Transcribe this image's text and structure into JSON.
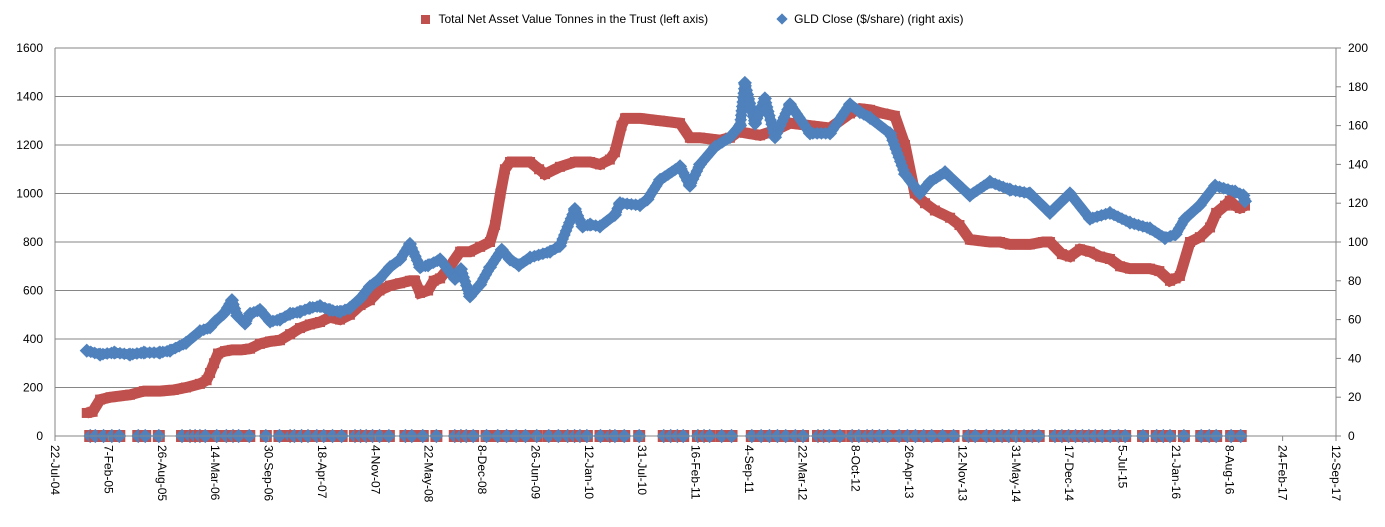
{
  "chart_data": {
    "type": "scatter",
    "title": "",
    "x_axis": {
      "type": "date",
      "min": "2004-07-22",
      "max": "2017-09-12",
      "tick_interval_days": 200,
      "tick_labels": [
        "22-Jul-04",
        "7-Feb-05",
        "26-Aug-05",
        "14-Mar-06",
        "30-Sep-06",
        "18-Apr-07",
        "4-Nov-07",
        "22-May-08",
        "8-Dec-08",
        "26-Jun-09",
        "12-Jan-10",
        "31-Jul-10",
        "16-Feb-11",
        "4-Sep-11",
        "22-Mar-12",
        "8-Oct-12",
        "26-Apr-13",
        "12-Nov-13",
        "31-May-14",
        "17-Dec-14",
        "5-Jul-15",
        "21-Jan-16",
        "8-Aug-16",
        "24-Feb-17",
        "12-Sep-17"
      ]
    },
    "y_left": {
      "min": 0,
      "max": 1600,
      "step": 200,
      "tick_labels": [
        "0",
        "200",
        "400",
        "600",
        "800",
        "1000",
        "1200",
        "1400",
        "1600"
      ]
    },
    "y_right": {
      "min": 0,
      "max": 200,
      "step": 20,
      "tick_labels": [
        "0",
        "20",
        "40",
        "60",
        "80",
        "100",
        "120",
        "140",
        "160",
        "180",
        "200"
      ]
    },
    "grid": true,
    "legend_position": "top",
    "series": [
      {
        "name": "Total Net Asset Value Tonnes in the Trust (left axis)",
        "axis": "left",
        "marker": "square",
        "color": "#C0504D",
        "points": [
          [
            "2004-11-18",
            95
          ],
          [
            "2004-12-10",
            100
          ],
          [
            "2005-01-07",
            150
          ],
          [
            "2005-02-15",
            160
          ],
          [
            "2005-04-29",
            170
          ],
          [
            "2005-06-20",
            185
          ],
          [
            "2005-08-19",
            185
          ],
          [
            "2005-10-10",
            190
          ],
          [
            "2005-11-25",
            200
          ],
          [
            "2006-01-16",
            215
          ],
          [
            "2006-02-10",
            230
          ],
          [
            "2006-02-23",
            260
          ],
          [
            "2006-03-10",
            300
          ],
          [
            "2006-03-25",
            340
          ],
          [
            "2006-04-20",
            350
          ],
          [
            "2006-05-16",
            355
          ],
          [
            "2006-06-20",
            355
          ],
          [
            "2006-07-23",
            360
          ],
          [
            "2006-08-29",
            380
          ],
          [
            "2006-10-06",
            390
          ],
          [
            "2006-11-12",
            395
          ],
          [
            "2006-12-20",
            420
          ],
          [
            "2007-01-26",
            445
          ],
          [
            "2007-03-04",
            460
          ],
          [
            "2007-04-11",
            470
          ],
          [
            "2007-05-18",
            490
          ],
          [
            "2007-06-25",
            480
          ],
          [
            "2007-08-01",
            500
          ],
          [
            "2007-09-10",
            540
          ],
          [
            "2007-10-15",
            560
          ],
          [
            "2007-11-20",
            600
          ],
          [
            "2007-12-29",
            620
          ],
          [
            "2008-02-05",
            630
          ],
          [
            "2008-03-13",
            640
          ],
          [
            "2008-04-01",
            640
          ],
          [
            "2008-04-20",
            590
          ],
          [
            "2008-05-20",
            600
          ],
          [
            "2008-06-10",
            640
          ],
          [
            "2008-07-04",
            650
          ],
          [
            "2008-08-10",
            700
          ],
          [
            "2008-09-17",
            760
          ],
          [
            "2008-10-24",
            760
          ],
          [
            "2008-12-01",
            780
          ],
          [
            "2009-01-07",
            800
          ],
          [
            "2009-01-26",
            870
          ],
          [
            "2009-02-15",
            1000
          ],
          [
            "2009-03-04",
            1100
          ],
          [
            "2009-03-23",
            1130
          ],
          [
            "2009-05-01",
            1130
          ],
          [
            "2009-06-06",
            1130
          ],
          [
            "2009-07-10",
            1100
          ],
          [
            "2009-08-01",
            1080
          ],
          [
            "2009-09-26",
            1110
          ],
          [
            "2009-11-21",
            1130
          ],
          [
            "2010-01-17",
            1130
          ],
          [
            "2010-02-23",
            1120
          ],
          [
            "2010-04-01",
            1140
          ],
          [
            "2010-04-20",
            1170
          ],
          [
            "2010-05-15",
            1280
          ],
          [
            "2010-05-28",
            1310
          ],
          [
            "2010-07-23",
            1310
          ],
          [
            "2010-10-06",
            1300
          ],
          [
            "2010-12-20",
            1290
          ],
          [
            "2011-01-26",
            1230
          ],
          [
            "2011-03-05",
            1230
          ],
          [
            "2011-05-19",
            1220
          ],
          [
            "2011-06-25",
            1230
          ],
          [
            "2011-08-02",
            1260
          ],
          [
            "2011-08-20",
            1250
          ],
          [
            "2011-10-16",
            1240
          ],
          [
            "2011-12-11",
            1260
          ],
          [
            "2012-02-05",
            1290
          ],
          [
            "2012-04-20",
            1280
          ],
          [
            "2012-07-04",
            1270
          ],
          [
            "2012-09-17",
            1330
          ],
          [
            "2012-10-24",
            1350
          ],
          [
            "2012-12-01",
            1345
          ],
          [
            "2013-01-20",
            1330
          ],
          [
            "2013-03-04",
            1320
          ],
          [
            "2013-04-11",
            1200
          ],
          [
            "2013-05-18",
            1000
          ],
          [
            "2013-06-25",
            960
          ],
          [
            "2013-08-01",
            930
          ],
          [
            "2013-09-27",
            900
          ],
          [
            "2013-11-01",
            870
          ],
          [
            "2013-12-10",
            810
          ],
          [
            "2014-02-23",
            800
          ],
          [
            "2014-04-02",
            800
          ],
          [
            "2014-05-09",
            790
          ],
          [
            "2014-07-23",
            790
          ],
          [
            "2014-09-10",
            800
          ],
          [
            "2014-10-06",
            800
          ],
          [
            "2014-11-20",
            750
          ],
          [
            "2014-12-20",
            740
          ],
          [
            "2015-01-27",
            770
          ],
          [
            "2015-03-05",
            760
          ],
          [
            "2015-04-12",
            740
          ],
          [
            "2015-05-19",
            730
          ],
          [
            "2015-06-26",
            700
          ],
          [
            "2015-08-02",
            690
          ],
          [
            "2015-10-16",
            690
          ],
          [
            "2015-11-20",
            680
          ],
          [
            "2015-12-30",
            640
          ],
          [
            "2016-01-20",
            650
          ],
          [
            "2016-02-05",
            660
          ],
          [
            "2016-03-14",
            800
          ],
          [
            "2016-04-20",
            820
          ],
          [
            "2016-05-28",
            860
          ],
          [
            "2016-06-20",
            920
          ],
          [
            "2016-07-23",
            950
          ],
          [
            "2016-08-10",
            970
          ],
          [
            "2016-08-30",
            950
          ],
          [
            "2016-09-17",
            940
          ],
          [
            "2016-10-06",
            950
          ]
        ],
        "zero_dates": []
      },
      {
        "name": "GLD Close ($/share) (right axis)",
        "axis": "right",
        "marker": "diamond",
        "color": "#4F81BD",
        "points": [
          [
            "2004-11-18",
            44
          ],
          [
            "2005-01-07",
            42
          ],
          [
            "2005-03-01",
            43
          ],
          [
            "2005-04-29",
            42
          ],
          [
            "2005-06-20",
            43
          ],
          [
            "2005-08-19",
            43
          ],
          [
            "2005-09-26",
            44
          ],
          [
            "2005-11-25",
            48
          ],
          [
            "2006-01-16",
            54
          ],
          [
            "2006-02-23",
            56
          ],
          [
            "2006-03-14",
            59
          ],
          [
            "2006-04-15",
            63
          ],
          [
            "2006-05-16",
            70
          ],
          [
            "2006-06-05",
            62
          ],
          [
            "2006-07-04",
            58
          ],
          [
            "2006-07-23",
            63
          ],
          [
            "2006-08-29",
            65
          ],
          [
            "2006-10-06",
            59
          ],
          [
            "2006-11-12",
            60
          ],
          [
            "2006-12-20",
            63
          ],
          [
            "2007-01-26",
            64
          ],
          [
            "2007-03-04",
            66
          ],
          [
            "2007-04-11",
            67
          ],
          [
            "2007-05-18",
            65
          ],
          [
            "2007-06-25",
            64
          ],
          [
            "2007-08-01",
            66
          ],
          [
            "2007-09-10",
            71
          ],
          [
            "2007-10-15",
            77
          ],
          [
            "2007-11-20",
            81
          ],
          [
            "2007-12-29",
            87
          ],
          [
            "2008-02-05",
            91
          ],
          [
            "2008-03-13",
            99
          ],
          [
            "2008-04-20",
            87
          ],
          [
            "2008-05-20",
            88
          ],
          [
            "2008-07-04",
            91
          ],
          [
            "2008-08-29",
            81
          ],
          [
            "2008-09-20",
            86
          ],
          [
            "2008-10-24",
            72
          ],
          [
            "2008-12-01",
            78
          ],
          [
            "2009-01-07",
            87
          ],
          [
            "2009-02-20",
            96
          ],
          [
            "2009-03-23",
            91
          ],
          [
            "2009-04-25",
            88
          ],
          [
            "2009-06-06",
            92
          ],
          [
            "2009-08-20",
            95
          ],
          [
            "2009-09-26",
            98
          ],
          [
            "2009-11-21",
            117
          ],
          [
            "2009-12-20",
            108
          ],
          [
            "2010-01-17",
            109
          ],
          [
            "2010-02-23",
            108
          ],
          [
            "2010-04-20",
            114
          ],
          [
            "2010-05-09",
            120
          ],
          [
            "2010-07-23",
            119
          ],
          [
            "2010-08-20",
            122
          ],
          [
            "2010-10-06",
            132
          ],
          [
            "2010-12-20",
            139
          ],
          [
            "2011-01-26",
            129
          ],
          [
            "2011-03-05",
            140
          ],
          [
            "2011-04-30",
            149
          ],
          [
            "2011-06-25",
            154
          ],
          [
            "2011-08-02",
            160
          ],
          [
            "2011-08-20",
            182
          ],
          [
            "2011-09-27",
            161
          ],
          [
            "2011-11-03",
            174
          ],
          [
            "2011-12-11",
            154
          ],
          [
            "2012-02-05",
            171
          ],
          [
            "2012-04-20",
            156
          ],
          [
            "2012-07-04",
            156
          ],
          [
            "2012-09-17",
            171
          ],
          [
            "2012-10-24",
            167
          ],
          [
            "2012-12-01",
            164
          ],
          [
            "2013-02-14",
            156
          ],
          [
            "2013-04-11",
            135
          ],
          [
            "2013-06-06",
            125
          ],
          [
            "2013-07-14",
            131
          ],
          [
            "2013-09-08",
            136
          ],
          [
            "2013-12-10",
            124
          ],
          [
            "2014-02-23",
            131
          ],
          [
            "2014-05-09",
            127
          ],
          [
            "2014-07-23",
            125
          ],
          [
            "2014-10-06",
            115
          ],
          [
            "2014-12-20",
            125
          ],
          [
            "2015-03-05",
            112
          ],
          [
            "2015-05-19",
            115
          ],
          [
            "2015-08-02",
            110
          ],
          [
            "2015-10-16",
            107
          ],
          [
            "2015-12-11",
            102
          ],
          [
            "2016-01-20",
            104
          ],
          [
            "2016-02-24",
            112
          ],
          [
            "2016-04-20",
            119
          ],
          [
            "2016-06-16",
            129
          ],
          [
            "2016-08-30",
            126
          ],
          [
            "2016-09-30",
            124
          ],
          [
            "2016-10-06",
            121
          ]
        ],
        "zero_dates": []
      }
    ],
    "zero_value_dates": [
      "2004-12-01",
      "2004-12-20",
      "2005-01-20",
      "2005-02-20",
      "2005-03-20",
      "2005-05-30",
      "2005-06-25",
      "2005-08-15",
      "2005-11-10",
      "2005-12-10",
      "2005-12-29",
      "2006-01-16",
      "2006-02-05",
      "2006-03-20",
      "2006-04-25",
      "2006-05-20",
      "2006-06-10",
      "2006-07-20",
      "2006-09-20",
      "2006-11-10",
      "2006-12-20",
      "2007-01-05",
      "2007-02-01",
      "2007-02-25",
      "2007-03-30",
      "2007-04-25",
      "2007-05-28",
      "2007-07-01",
      "2007-08-20",
      "2007-09-10",
      "2007-10-01",
      "2007-10-25",
      "2007-11-20",
      "2007-12-25",
      "2008-02-25",
      "2008-03-20",
      "2008-04-30",
      "2008-06-20",
      "2008-08-28",
      "2008-09-20",
      "2008-10-10",
      "2008-11-05",
      "2008-12-25",
      "2009-02-05",
      "2009-03-10",
      "2009-04-15",
      "2009-05-20",
      "2009-07-01",
      "2009-08-15",
      "2009-09-20",
      "2009-10-25",
      "2009-11-20",
      "2009-12-10",
      "2010-01-05",
      "2010-02-25",
      "2010-04-01",
      "2010-04-20",
      "2010-05-25",
      "2010-07-20",
      "2010-10-20",
      "2010-11-15",
      "2010-12-10",
      "2011-01-01",
      "2011-02-25",
      "2011-03-20",
      "2011-04-10",
      "2011-05-25",
      "2011-07-01",
      "2011-09-15",
      "2011-10-20",
      "2011-11-20",
      "2011-12-20",
      "2012-01-20",
      "2012-02-25",
      "2012-03-25",
      "2012-05-20",
      "2012-06-10",
      "2012-07-01",
      "2012-08-10",
      "2012-09-25",
      "2012-10-20",
      "2012-11-20",
      "2012-12-10",
      "2013-01-05",
      "2013-02-05",
      "2013-03-20",
      "2013-04-20",
      "2013-05-20",
      "2013-06-20",
      "2013-07-20",
      "2013-08-30",
      "2013-10-10",
      "2013-12-05",
      "2013-12-30",
      "2014-02-10",
      "2014-03-10",
      "2014-04-10",
      "2014-05-05",
      "2014-06-01",
      "2014-07-01",
      "2014-08-01",
      "2014-08-25",
      "2014-10-25",
      "2014-11-20",
      "2014-12-15",
      "2015-01-10",
      "2015-02-05",
      "2015-03-01",
      "2015-03-25",
      "2015-04-20",
      "2015-05-20",
      "2015-06-20",
      "2015-07-15",
      "2015-09-20",
      "2015-11-10",
      "2015-12-05",
      "2015-12-30",
      "2016-02-20",
      "2016-04-25",
      "2016-05-25",
      "2016-06-20",
      "2016-08-15",
      "2016-09-20"
    ]
  }
}
